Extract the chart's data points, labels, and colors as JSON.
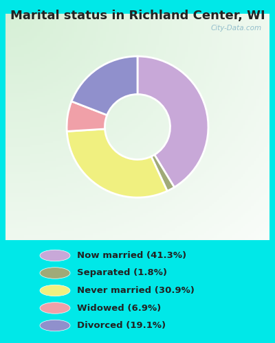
{
  "title": "Marital status in Richland Center, WI",
  "title_fontsize": 13,
  "title_fontweight": "bold",
  "title_color": "#222222",
  "categories": [
    "Now married",
    "Separated",
    "Never married",
    "Widowed",
    "Divorced"
  ],
  "values": [
    41.3,
    1.8,
    30.9,
    6.9,
    19.1
  ],
  "colors": [
    "#c8a8d8",
    "#a0aa78",
    "#f0f080",
    "#f0a0a8",
    "#9090cc"
  ],
  "legend_labels": [
    "Now married (41.3%)",
    "Separated (1.8%)",
    "Never married (30.9%)",
    "Widowed (6.9%)",
    "Divorced (19.1%)"
  ],
  "bg_cyan": "#00e8e8",
  "bg_chart_color1": "#d8f0d8",
  "bg_chart_color2": "#f8f8ff",
  "watermark": "City-Data.com",
  "donut_width": 0.42,
  "start_angle": 90
}
